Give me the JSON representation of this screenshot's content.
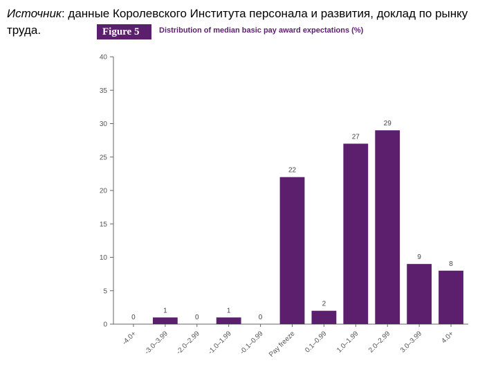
{
  "source": {
    "prefix": "Источник",
    "text": ": данные Королевского Института персонала и развития, доклад по рынку труда."
  },
  "figure": {
    "badge": "Figure 5",
    "title": "Distribution of median basic pay award expectations (%)"
  },
  "colors": {
    "bar": "#5b1f6e",
    "axis": "#666666"
  },
  "chart_data": {
    "type": "bar",
    "categories": [
      "-4.0+",
      "-3.0–3.99",
      "-2.0–2.99",
      "-1.0–1.99",
      "-0.1–0.99",
      "Pay freeze",
      "0.1–0.99",
      "1.0–1.99",
      "2.0–2.99",
      "3.0–3.99",
      "4.0+"
    ],
    "values": [
      0,
      1,
      0,
      1,
      0,
      22,
      2,
      27,
      29,
      9,
      8
    ],
    "data_labels": [
      "0",
      "1",
      "0",
      "1",
      "0",
      "22",
      "2",
      "27",
      "29",
      "9",
      "8"
    ],
    "y_ticks": [
      0,
      5,
      10,
      15,
      20,
      25,
      30,
      35,
      40
    ],
    "ylim": [
      0,
      40
    ],
    "title": "Distribution of median basic pay award expectations (%)"
  }
}
